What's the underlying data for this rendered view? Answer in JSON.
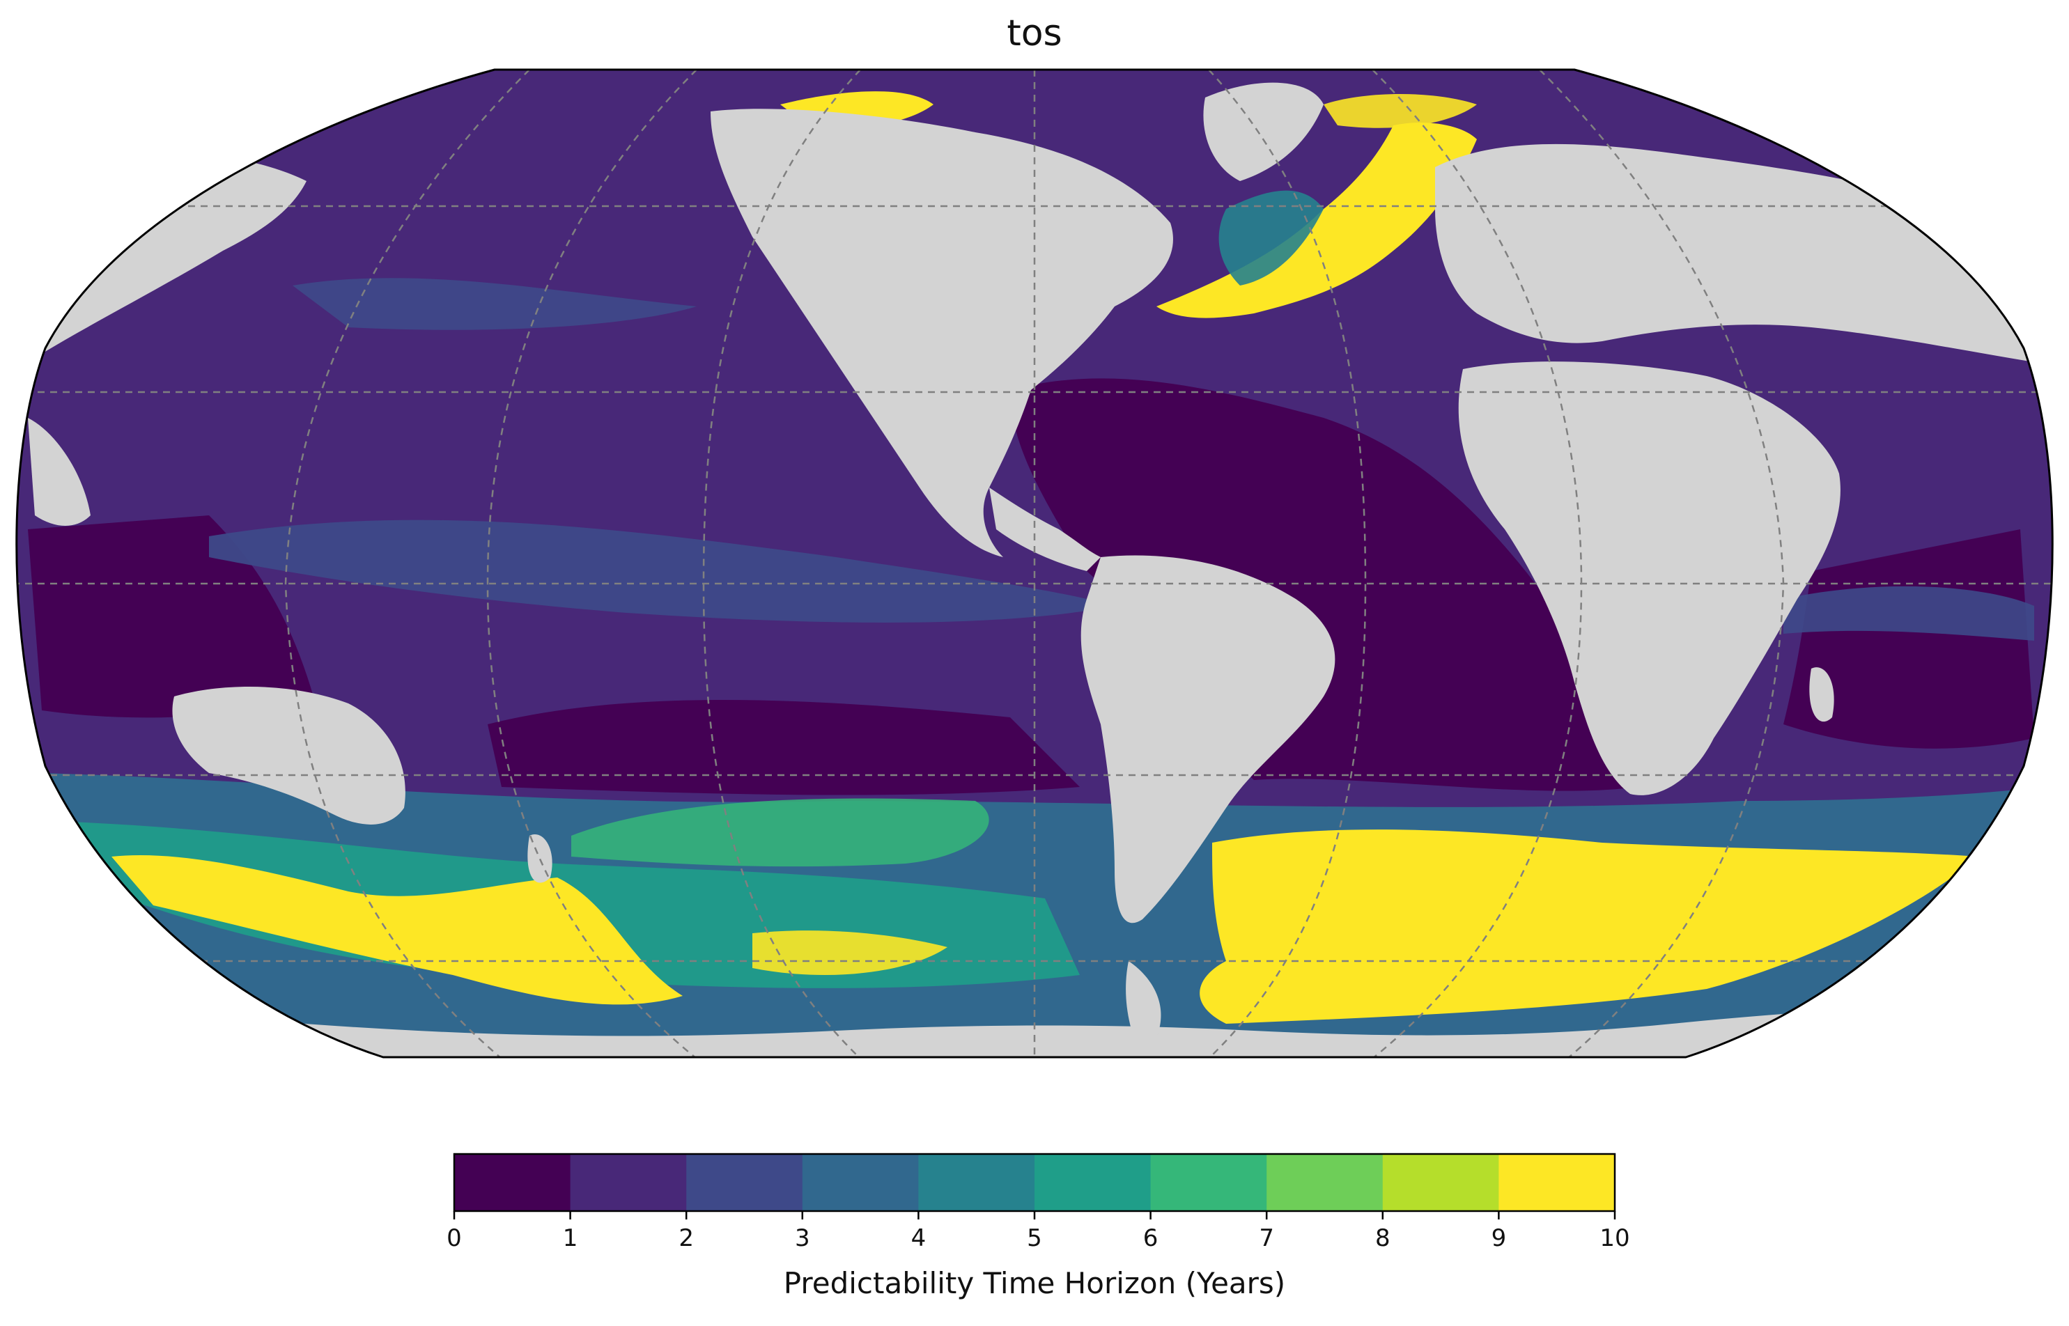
{
  "map": {
    "title": "tos",
    "projection": "Robinson",
    "central_longitude": -160,
    "land_color": "#d3d3d3",
    "gridlines": true,
    "gridline_style": "dashed"
  },
  "colorbar": {
    "label": "Predictability Time Horizon (Years)",
    "min": 0,
    "max": 10,
    "ticks": [
      "0",
      "1",
      "2",
      "3",
      "4",
      "5",
      "6",
      "7",
      "8",
      "9",
      "10"
    ],
    "colors": [
      "#440154",
      "#482878",
      "#3e4989",
      "#31688e",
      "#26828e",
      "#1f9e89",
      "#35b779",
      "#6ece58",
      "#b5de2b",
      "#fde725"
    ]
  }
}
